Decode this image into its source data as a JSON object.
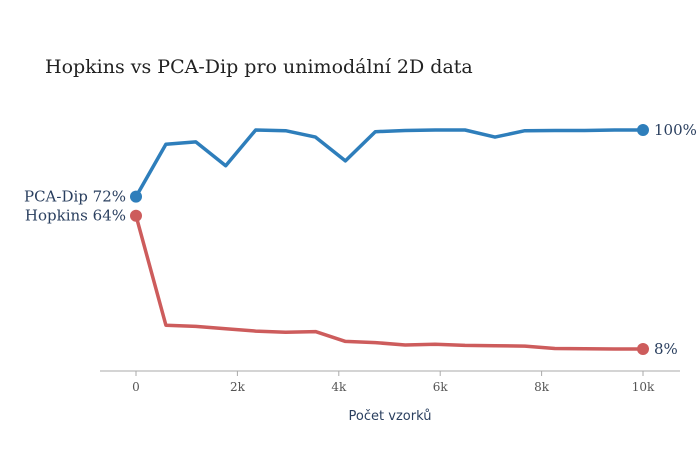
{
  "chart_data": {
    "type": "line",
    "title": "Hopkins vs PCA-Dip pro unimodální 2D data",
    "xlabel": "Počet vzorků",
    "ylabel": "",
    "xlim": [
      -700,
      10700
    ],
    "ylim": [
      0,
      100
    ],
    "x_ticks": [
      {
        "value": 0,
        "label": "0"
      },
      {
        "value": 2000,
        "label": "2k"
      },
      {
        "value": 4000,
        "label": "4k"
      },
      {
        "value": 6000,
        "label": "6k"
      },
      {
        "value": 8000,
        "label": "8k"
      },
      {
        "value": 10000,
        "label": "10k"
      }
    ],
    "grid": false,
    "legend": "none",
    "series": [
      {
        "name": "PCA-Dip",
        "color": "#2e7ebb",
        "start_label": "PCA-Dip 72%",
        "end_label": "100%",
        "x": [
          0,
          590,
          1180,
          1770,
          2360,
          2950,
          3540,
          4130,
          4720,
          5310,
          5900,
          6490,
          7080,
          7670,
          8260,
          8850,
          9440,
          10000
        ],
        "y": [
          72,
          94,
          95,
          85,
          100,
          99.7,
          97,
          87,
          99.3,
          99.8,
          100,
          100,
          97,
          99.7,
          99.8,
          99.8,
          100,
          100
        ]
      },
      {
        "name": "Hopkins",
        "color": "#cd5c5c",
        "start_label": "Hopkins 64%",
        "end_label": "8%",
        "x": [
          0,
          590,
          1180,
          1770,
          2360,
          2950,
          3540,
          4130,
          4720,
          5310,
          5900,
          6490,
          7080,
          7670,
          8260,
          8850,
          9440,
          10000
        ],
        "y": [
          64,
          18,
          17.5,
          16.5,
          15.5,
          15,
          15.3,
          11.2,
          10.7,
          9.7,
          10,
          9.5,
          9.4,
          9.2,
          8.2,
          8.1,
          8,
          8
        ]
      }
    ]
  }
}
